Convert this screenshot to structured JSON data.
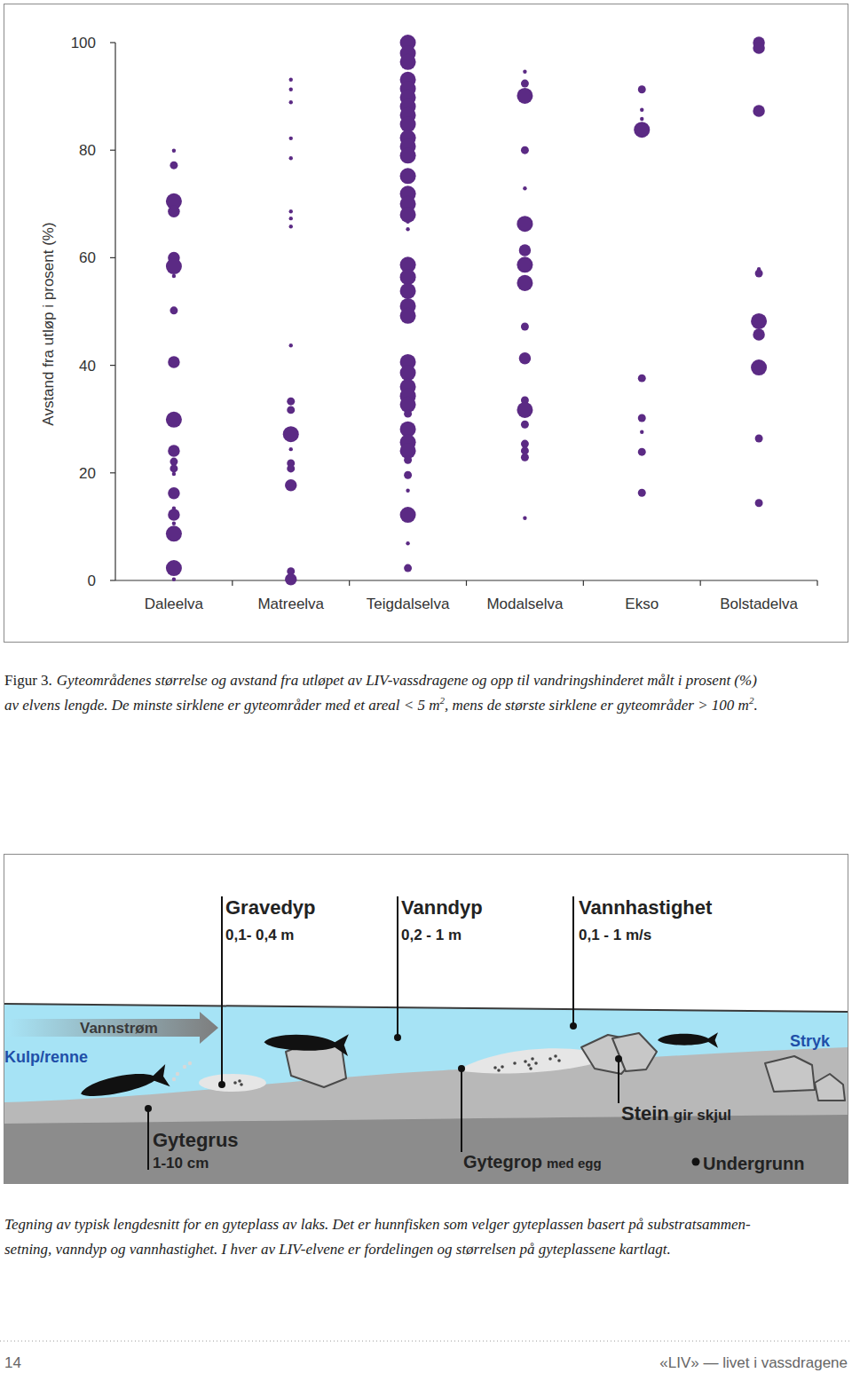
{
  "chart_data": {
    "type": "bubble",
    "y_label": "Avstand fra utløp i prosent (%)",
    "categories": [
      "Daleelva",
      "Matreelva",
      "Teigdalselva",
      "Modalselva",
      "Ekso",
      "Bolstadelva"
    ],
    "values": [
      [
        79.9,
        77.2,
        70.5,
        68.6,
        60,
        58.4,
        56.6,
        50.2,
        40.6,
        29.9,
        24.1,
        22.1,
        20.8,
        19.8,
        16.2,
        13.4,
        12.2,
        10.6,
        8.7,
        2.3,
        0.2
      ],
      [
        93.1,
        91.3,
        88.9,
        82.2,
        78.5,
        68.6,
        67.3,
        65.8,
        43.7,
        33.3,
        31.7,
        27.2,
        24.4,
        21.8,
        20.8,
        17.7,
        1.7,
        0.2
      ],
      [
        100,
        98,
        96.4,
        93.1,
        91.4,
        89.8,
        88.1,
        86.5,
        84.8,
        82.3,
        80.7,
        79,
        75.2,
        71.9,
        70,
        68,
        66.7,
        65.3,
        58.7,
        56.4,
        53.8,
        51,
        49.2,
        40.6,
        38.6,
        36,
        34.3,
        32.7,
        31,
        28.1,
        25.7,
        24.1,
        22.4,
        19.6,
        16.7,
        12.2,
        6.9,
        2.3
      ],
      [
        94.6,
        92.4,
        90.1,
        80,
        72.9,
        66.3,
        61.4,
        58.7,
        55.3,
        47.2,
        41.3,
        33.5,
        31.7,
        29,
        25.4,
        24.1,
        22.9,
        11.6
      ],
      [
        91.3,
        87.5,
        85.8,
        83.8,
        37.6,
        30.2,
        27.6,
        23.9,
        16.3
      ],
      [
        100,
        99,
        87.3,
        57.9,
        57.1,
        48.2,
        45.7,
        39.6,
        26.4,
        14.4
      ]
    ],
    "sizes": [
      [
        1,
        2,
        4,
        3,
        3,
        4,
        1,
        2,
        3,
        4,
        3,
        2,
        2,
        1,
        3,
        1,
        3,
        1,
        4,
        4,
        1
      ],
      [
        1,
        1,
        1,
        1,
        1,
        1,
        1,
        1,
        1,
        2,
        2,
        4,
        1,
        2,
        2,
        3,
        2,
        3
      ],
      [
        4,
        4,
        4,
        4,
        4,
        4,
        4,
        4,
        4,
        4,
        4,
        4,
        4,
        4,
        4,
        4,
        1,
        1,
        4,
        4,
        4,
        4,
        4,
        4,
        4,
        4,
        4,
        4,
        2,
        4,
        4,
        4,
        2,
        2,
        1,
        4,
        1,
        2
      ],
      [
        1,
        2,
        4,
        2,
        1,
        4,
        3,
        4,
        4,
        2,
        3,
        2,
        4,
        2,
        2,
        2,
        2,
        1
      ],
      [
        2,
        1,
        1,
        4,
        2,
        2,
        1,
        2,
        2
      ],
      [
        3,
        3,
        3,
        1,
        2,
        4,
        3,
        4,
        2,
        2
      ]
    ],
    "color": "#5b2a84",
    "ylim": [
      0,
      100
    ],
    "yticks": [
      0,
      20,
      40,
      60,
      80,
      100
    ]
  },
  "figure_caption": {
    "label": "Figur 3.",
    "lines": [
      [
        {
          "text": "Gyteområdenes størrelse og avstand fra utløpet av LIV-vassdragene og opp til vandringshinderet målt i prosent (%)"
        }
      ],
      [
        {
          "text": "av elvens lengde. De minste sirklene er gyteområder med et areal < 5 m"
        },
        {
          "text": "2",
          "sup": true
        },
        {
          "text": ", mens de største sirklene er gyteområder > 100 m"
        },
        {
          "text": "2",
          "sup": true
        },
        {
          "text": "."
        }
      ]
    ]
  },
  "diagram": {
    "callouts": [
      {
        "title": "Gravedyp",
        "detail": "0,1- 0,4 m"
      },
      {
        "title": "Vanndyp",
        "detail": "0,2 - 1 m"
      },
      {
        "title": "Vannhastighet",
        "detail": "0,1 -  1 m/s"
      },
      {
        "title": "Gytegrus",
        "detail": "1-10 cm"
      },
      {
        "title": "Stein",
        "detail": "gir skjul"
      },
      {
        "title": "Gytegrop",
        "detail": "med egg"
      },
      {
        "title": "Undergrunn"
      }
    ],
    "flow_label": "Vannstrøm",
    "zones": [
      "Kulp/renne",
      "Stryk"
    ]
  },
  "diagram_caption": {
    "lines": [
      "Tegning av typisk lengdesnitt for en gyteplass av laks. Det er hunnfisken som velger gyteplassen basert på substratsammen-",
      "setning, vanndyp og vannhastighet. I hver av LIV-elvene er fordelingen og størrelsen på gyteplassene kartlagt."
    ]
  },
  "footer": {
    "page_number": "14",
    "publication": "«LIV» — livet i vassdragene"
  }
}
